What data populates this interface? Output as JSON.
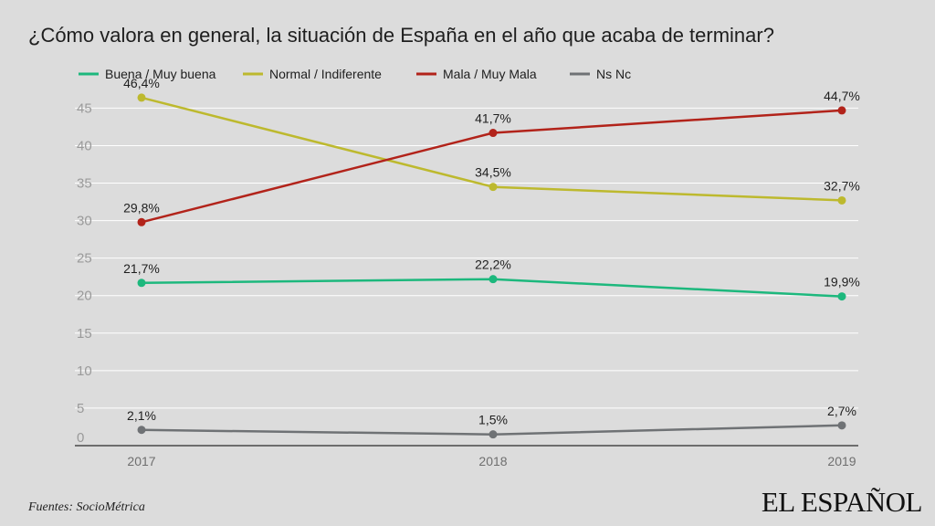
{
  "brand": "EL ESPAÑOL",
  "source": "Fuentes: SocioMétrica",
  "chart_data": {
    "type": "line",
    "title": "¿Cómo valora en general, la situación de España en el año que acaba de terminar?",
    "xlabel": "",
    "ylabel": "",
    "categories": [
      "2017",
      "2018",
      "2019"
    ],
    "ylim": [
      0,
      47
    ],
    "yticks": [
      0,
      5,
      10,
      15,
      20,
      25,
      30,
      35,
      40,
      45
    ],
    "grid": true,
    "legend_position": "top",
    "series": [
      {
        "name": "Buena / Muy buena",
        "color": "#1db87d",
        "values": [
          21.7,
          22.2,
          19.9
        ],
        "labels": [
          "21,7%",
          "22,2%",
          "19,9%"
        ]
      },
      {
        "name": "Normal / Indiferente",
        "color": "#bdb92e",
        "values": [
          46.4,
          34.5,
          32.7
        ],
        "labels": [
          "46,4%",
          "34,5%",
          "32,7%"
        ]
      },
      {
        "name": "Mala / Muy Mala",
        "color": "#b2231a",
        "values": [
          29.8,
          41.7,
          44.7
        ],
        "labels": [
          "29,8%",
          "41,7%",
          "44,7%"
        ]
      },
      {
        "name": "Ns Nc",
        "color": "#6f7275",
        "values": [
          2.1,
          1.5,
          2.7
        ],
        "labels": [
          "2,1%",
          "1,5%",
          "2,7%"
        ]
      }
    ]
  }
}
